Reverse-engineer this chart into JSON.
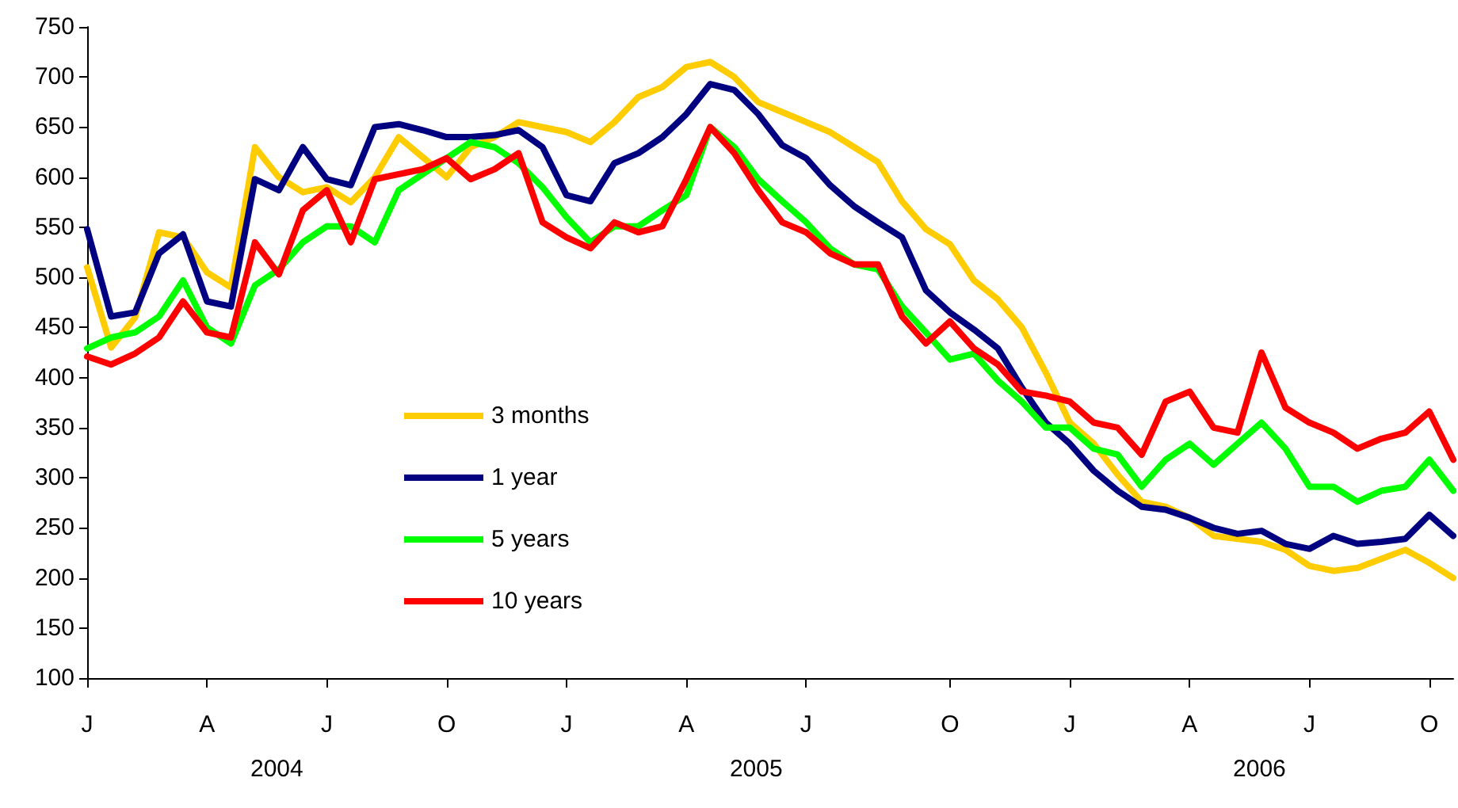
{
  "chart_data": {
    "type": "line",
    "categories": [
      "J",
      null,
      null,
      null,
      null,
      "A",
      null,
      null,
      null,
      null,
      "J",
      null,
      null,
      null,
      null,
      "O",
      null,
      null,
      null,
      null,
      "J",
      null,
      null,
      null,
      null,
      "A",
      null,
      null,
      null,
      null,
      "J",
      null,
      null,
      null,
      null,
      null,
      "O",
      null,
      null,
      null,
      null,
      "J",
      null,
      null,
      null,
      null,
      "A",
      null,
      null,
      null,
      null,
      "J",
      null,
      null,
      null,
      null,
      "O",
      null
    ],
    "series": [
      {
        "name": "3 months",
        "color": "#ffcc00",
        "values": [
          510,
          430,
          460,
          545,
          540,
          505,
          490,
          630,
          600,
          585,
          590,
          575,
          600,
          640,
          620,
          600,
          630,
          640,
          655,
          650,
          645,
          635,
          655,
          680,
          690,
          710,
          715,
          700,
          675,
          665,
          655,
          645,
          630,
          615,
          576,
          548,
          533,
          497,
          478,
          450,
          405,
          355,
          334,
          303,
          276,
          271,
          260,
          242,
          239,
          236,
          228,
          212,
          207,
          210,
          219,
          228,
          215,
          200
        ]
      },
      {
        "name": "1 year",
        "color": "#000080",
        "values": [
          548,
          461,
          465,
          524,
          543,
          476,
          471,
          598,
          587,
          630,
          598,
          592,
          650,
          653,
          647,
          640,
          640,
          642,
          647,
          630,
          582,
          576,
          614,
          624,
          640,
          663,
          693,
          687,
          663,
          632,
          619,
          592,
          571,
          555,
          540,
          487,
          465,
          448,
          429,
          390,
          355,
          334,
          307,
          287,
          271,
          268,
          260,
          250,
          244,
          247,
          234,
          229,
          242,
          234,
          236,
          239,
          263,
          242
        ]
      },
      {
        "name": "5 years",
        "color": "#00ff00",
        "values": [
          429,
          440,
          445,
          461,
          497,
          450,
          434,
          492,
          508,
          535,
          551,
          551,
          535,
          587,
          603,
          619,
          635,
          630,
          614,
          590,
          560,
          535,
          551,
          551,
          567,
          582,
          650,
          630,
          598,
          576,
          555,
          529,
          513,
          508,
          471,
          445,
          418,
          424,
          397,
          376,
          350,
          350,
          329,
          323,
          291,
          318,
          334,
          313,
          334,
          355,
          329,
          291,
          291,
          276,
          287,
          291,
          318,
          287
        ]
      },
      {
        "name": "10 years",
        "color": "#ff0000",
        "values": [
          421,
          413,
          424,
          440,
          476,
          445,
          440,
          535,
          503,
          567,
          587,
          535,
          598,
          603,
          608,
          619,
          598,
          608,
          624,
          555,
          540,
          529,
          555,
          545,
          551,
          598,
          650,
          624,
          587,
          555,
          545,
          524,
          513,
          513,
          461,
          434,
          456,
          429,
          413,
          386,
          382,
          376,
          355,
          350,
          323,
          376,
          386,
          350,
          345,
          425,
          370,
          355,
          345,
          329,
          339,
          345,
          366,
          318
        ]
      }
    ],
    "ylim": [
      100,
      750
    ],
    "yticks": [
      100,
      150,
      200,
      250,
      300,
      350,
      400,
      450,
      500,
      550,
      600,
      650,
      700,
      750
    ],
    "annotations": [
      "2004",
      "2005",
      "2006"
    ],
    "grid": false,
    "legend": "bottom left",
    "marker": "none",
    "line_style": "solid"
  }
}
